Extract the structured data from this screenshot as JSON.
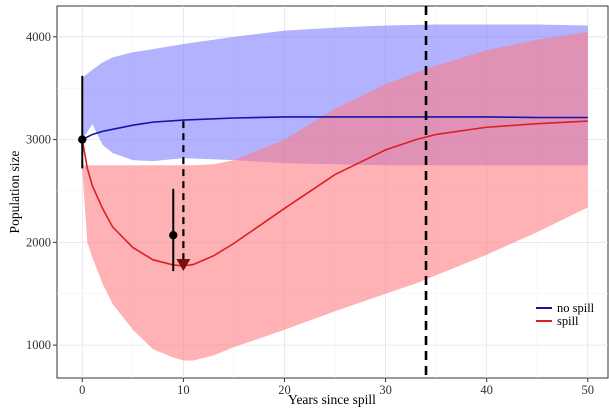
{
  "chart_data": {
    "type": "line",
    "xlabel": "Years since spill",
    "ylabel": "Population size",
    "xlim": [
      -2.5,
      52
    ],
    "ylim": [
      680,
      4300
    ],
    "x_ticks": [
      0,
      10,
      20,
      30,
      40,
      50
    ],
    "y_ticks": [
      1000,
      2000,
      3000,
      4000
    ],
    "grid": true,
    "legend_position": "bottom-right",
    "colors": {
      "no_spill": "#1414a8",
      "spill": "#dd1f1f",
      "no_spill_band": "#7a7aff",
      "spill_band": "#ff7a82",
      "overlap_line": "#7a1a78",
      "marker": "#000000",
      "arrow": "#7a0f0f"
    },
    "series": [
      {
        "name": "no spill",
        "x": [
          0,
          1,
          2,
          3,
          5,
          7,
          10,
          15,
          20,
          25,
          30,
          35,
          40,
          45,
          50
        ],
        "y": [
          3000,
          3050,
          3080,
          3100,
          3140,
          3170,
          3190,
          3210,
          3220,
          3220,
          3220,
          3220,
          3220,
          3215,
          3215
        ],
        "lower": [
          3000,
          3150,
          2950,
          2870,
          2800,
          2790,
          2820,
          2800,
          2770,
          2760,
          2750,
          2750,
          2750,
          2750,
          2750
        ],
        "upper": [
          3600,
          3680,
          3750,
          3800,
          3850,
          3880,
          3930,
          4000,
          4060,
          4090,
          4110,
          4120,
          4120,
          4120,
          4110
        ]
      },
      {
        "name": "spill",
        "x": [
          0,
          0.5,
          1,
          2,
          3,
          5,
          7,
          9,
          10,
          11,
          13,
          15,
          20,
          25,
          30,
          33,
          35,
          40,
          45,
          50
        ],
        "y": [
          3000,
          2720,
          2550,
          2330,
          2150,
          1950,
          1830,
          1780,
          1770,
          1785,
          1870,
          1990,
          2330,
          2660,
          2900,
          3000,
          3050,
          3120,
          3155,
          3180
        ],
        "lower": [
          2700,
          2000,
          1850,
          1600,
          1400,
          1150,
          960,
          880,
          850,
          850,
          900,
          980,
          1150,
          1330,
          1500,
          1600,
          1680,
          1880,
          2100,
          2340
        ],
        "upper": [
          2750,
          2750,
          2750,
          2750,
          2750,
          2750,
          2750,
          2750,
          2750,
          2750,
          2760,
          2800,
          3000,
          3300,
          3540,
          3650,
          3720,
          3870,
          3970,
          4050
        ]
      }
    ],
    "annotations": [
      {
        "kind": "vline",
        "x": 34,
        "style": "dashed"
      },
      {
        "kind": "dashed_segment",
        "x": 10,
        "y_from": 3180,
        "y_to": 1770
      },
      {
        "kind": "arrow_down",
        "x": 10,
        "y": 1770
      },
      {
        "kind": "point_with_error",
        "x": 0,
        "y": 3000,
        "low": 2720,
        "high": 3620
      },
      {
        "kind": "point_with_error",
        "x": 9,
        "y": 2070,
        "low": 1720,
        "high": 2520
      }
    ]
  }
}
